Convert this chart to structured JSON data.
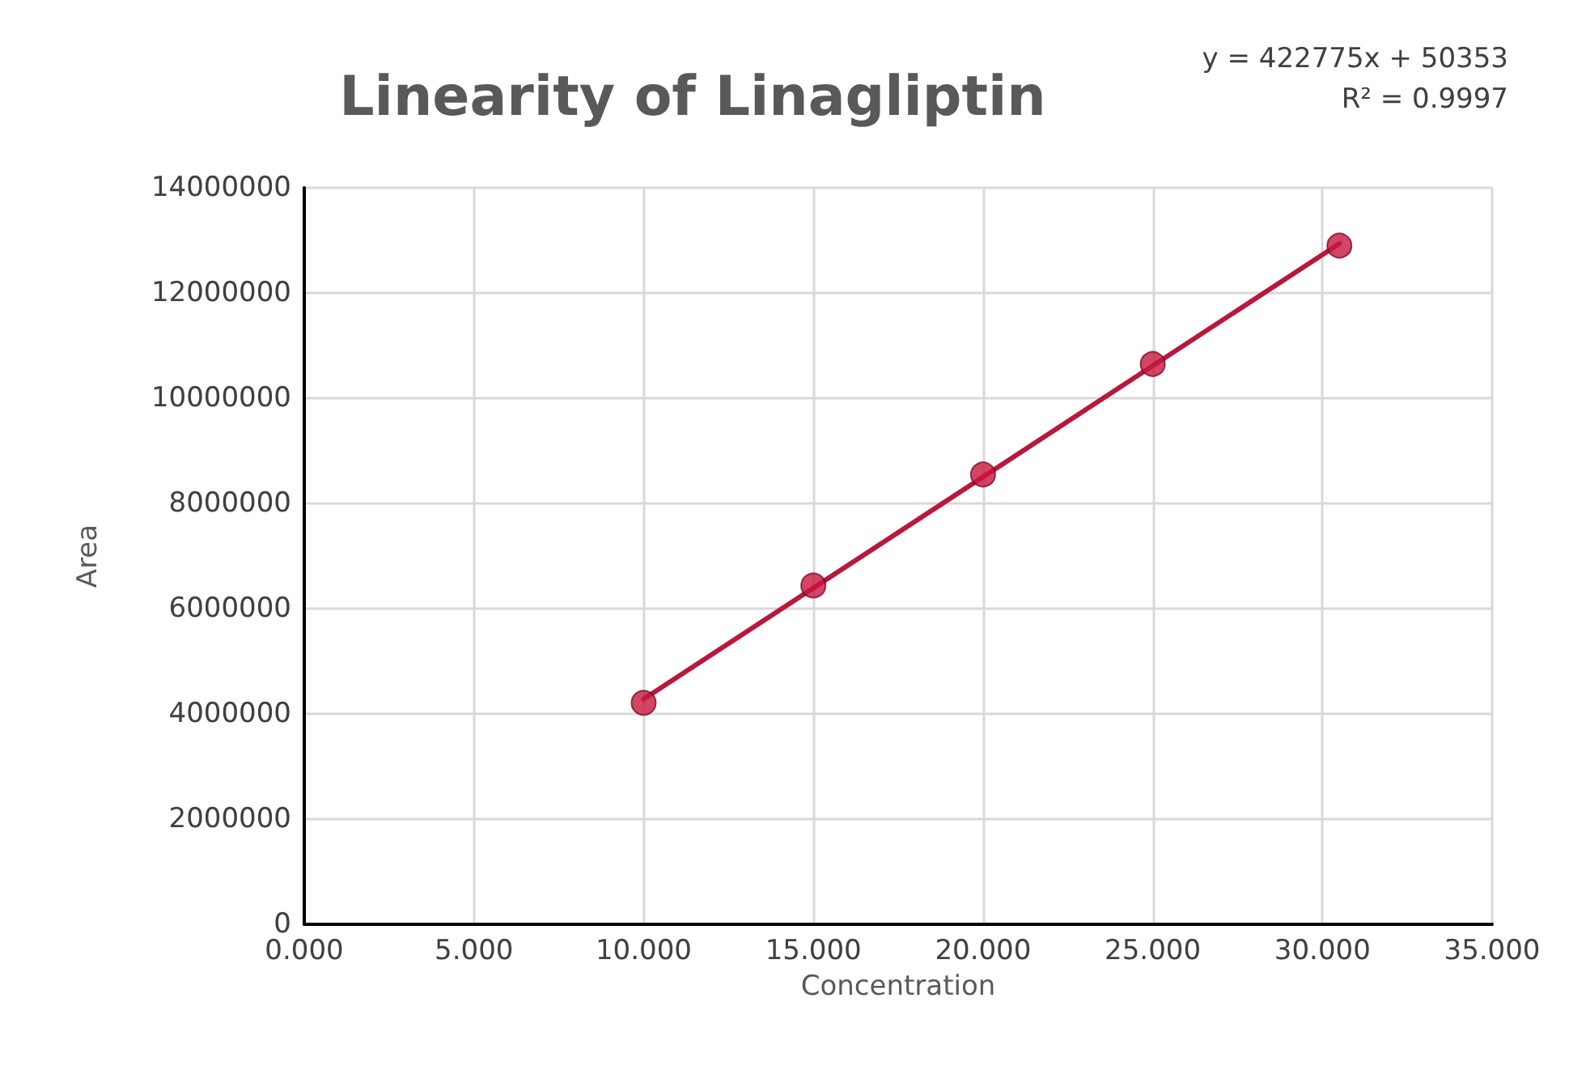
{
  "chart_data": {
    "type": "scatter",
    "title": "Linearity of Linagliptin",
    "xlabel": "Concentration",
    "ylabel": "Area",
    "annotations": [
      "y = 422775x + 50353",
      "R² = 0.9997"
    ],
    "series": [
      {
        "color": "#c8173f",
        "x": [
          10,
          15,
          20,
          25,
          30.5
        ],
        "values": [
          4210000,
          6440000,
          8550000,
          10650000,
          12900000
        ],
        "marker": "circle"
      },
      {
        "type": "line",
        "color": "#b8183c",
        "x": [
          10,
          30.5
        ],
        "values": [
          4280000,
          12940000
        ],
        "marker": "none",
        "line_style": "solid"
      }
    ],
    "xlim": [
      0,
      35
    ],
    "xticks": [
      {
        "value": 0,
        "label": "0.000"
      },
      {
        "value": 5,
        "label": "5.000"
      },
      {
        "value": 10,
        "label": "10.000"
      },
      {
        "value": 15,
        "label": "15.000"
      },
      {
        "value": 20,
        "label": "20.000"
      },
      {
        "value": 25,
        "label": "25.000"
      },
      {
        "value": 30,
        "label": "30.000"
      },
      {
        "value": 35,
        "label": "35.000"
      }
    ],
    "ylim": [
      0,
      14000000
    ],
    "yticks": [
      0,
      2000000,
      4000000,
      6000000,
      8000000,
      10000000,
      12000000,
      14000000
    ],
    "grid": true
  }
}
